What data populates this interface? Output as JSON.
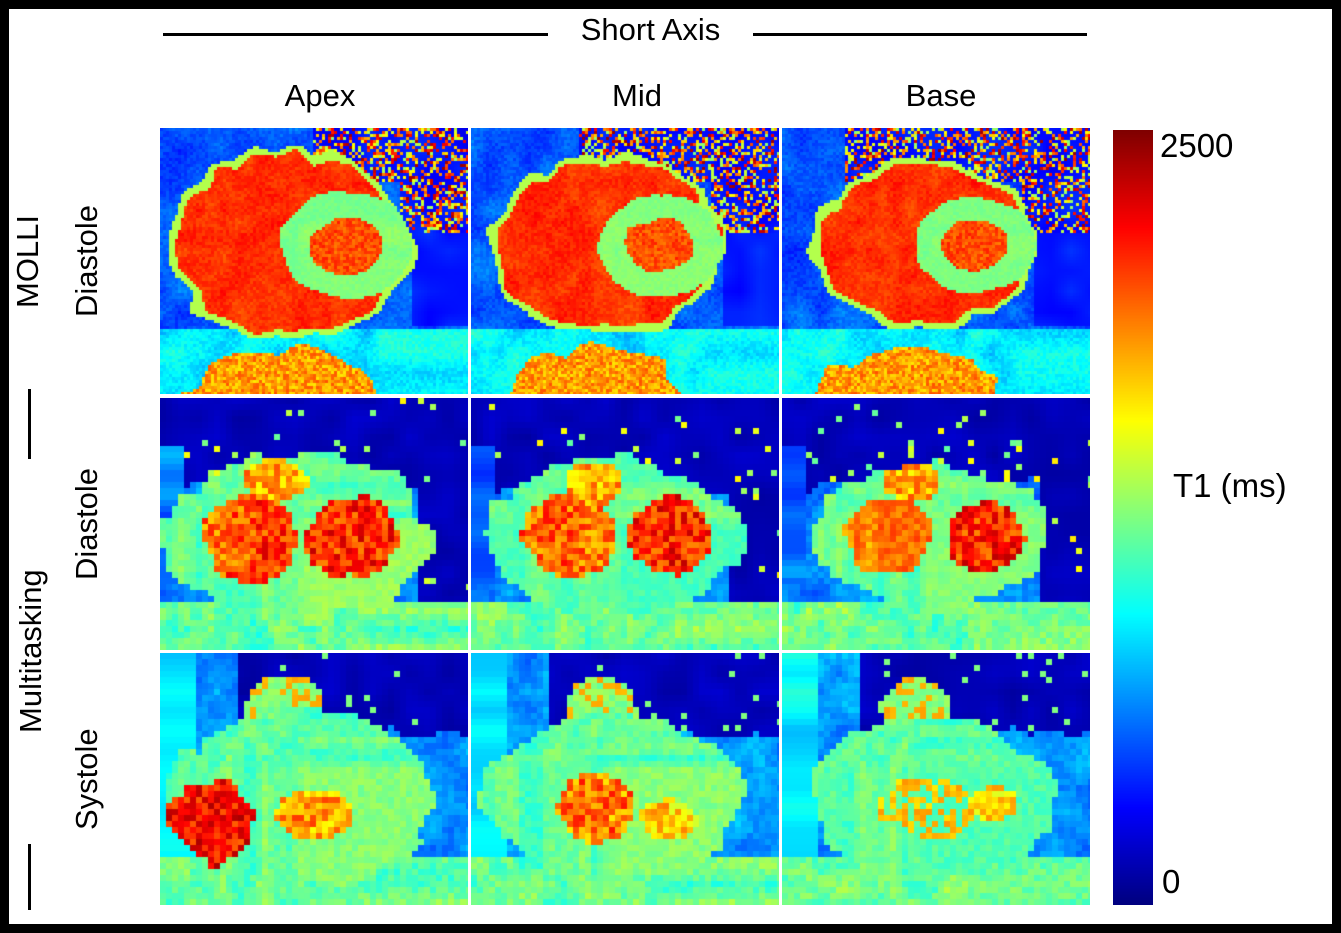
{
  "figure": {
    "axis_title": "Short Axis",
    "column_labels": [
      "Apex",
      "Mid",
      "Base"
    ],
    "row_groups": [
      {
        "label": "MOLLI",
        "phases": [
          "Diastole"
        ]
      },
      {
        "label": "Multitasking",
        "phases": [
          "Diastole",
          "Systole"
        ]
      }
    ],
    "colorbar": {
      "label": "T1 (ms)",
      "tick_max": "2500",
      "tick_min": "0",
      "colormap": "jet",
      "max_color": "#7f0000",
      "min_color": "#00007f"
    },
    "panels": [
      {
        "sequence": "MOLLI",
        "phase": "Diastole",
        "slice": "Apex"
      },
      {
        "sequence": "MOLLI",
        "phase": "Diastole",
        "slice": "Mid"
      },
      {
        "sequence": "MOLLI",
        "phase": "Diastole",
        "slice": "Base"
      },
      {
        "sequence": "Multitasking",
        "phase": "Diastole",
        "slice": "Apex"
      },
      {
        "sequence": "Multitasking",
        "phase": "Diastole",
        "slice": "Mid"
      },
      {
        "sequence": "Multitasking",
        "phase": "Diastole",
        "slice": "Base"
      },
      {
        "sequence": "Multitasking",
        "phase": "Systole",
        "slice": "Apex"
      },
      {
        "sequence": "Multitasking",
        "phase": "Systole",
        "slice": "Mid"
      },
      {
        "sequence": "Multitasking",
        "phase": "Systole",
        "slice": "Base"
      }
    ]
  }
}
